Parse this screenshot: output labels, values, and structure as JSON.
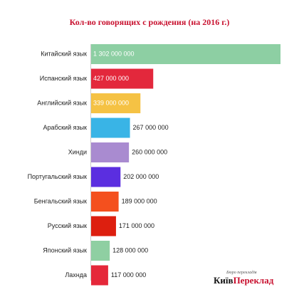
{
  "chart_data": {
    "type": "bar",
    "orientation": "horizontal",
    "title": "Кол-во говорящих с рождения (на 2016 г.)",
    "categories": [
      "Китайский язык",
      "Испанский язык",
      "Английский язык",
      "Арабский язык",
      "Хинди",
      "Португальский язык",
      "Бенгальский язык",
      "Русский язык",
      "Японский язык",
      "Лахнда"
    ],
    "values": [
      1302000000,
      427000000,
      339000000,
      267000000,
      260000000,
      202000000,
      189000000,
      171000000,
      128000000,
      117000000
    ],
    "value_labels": [
      "1 302 000 000",
      "427 000 000",
      "339 000 000",
      "267 000 000",
      "260 000 000",
      "202 000 000",
      "189 000 000",
      "171 000 000",
      "128 000 000",
      "117 000 000"
    ],
    "colors": [
      "#8dcfa3",
      "#e3283c",
      "#f5c244",
      "#39b4e6",
      "#a98bd0",
      "#5b2ee0",
      "#f4501e",
      "#dd1f0f",
      "#8fcfa2",
      "#e5283a"
    ],
    "xlim": [
      0,
      1302000000
    ],
    "grid": false,
    "legend": "none"
  },
  "watermark": {
    "subtitle": "Бюро перекладів",
    "part1": "Київ",
    "part2": "Переклад"
  }
}
